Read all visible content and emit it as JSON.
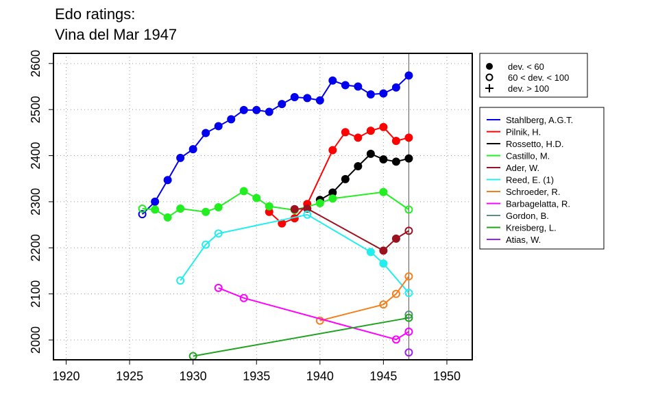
{
  "chart_data": {
    "type": "line",
    "title_lines": [
      "Edo ratings:",
      "Vina del Mar 1947"
    ],
    "xlim": [
      1919,
      1952
    ],
    "ylim": [
      1957,
      2622
    ],
    "x_ticks": [
      1920,
      1925,
      1930,
      1935,
      1940,
      1945,
      1950
    ],
    "y_ticks": [
      2000,
      2100,
      2200,
      2300,
      2400,
      2500,
      2600
    ],
    "grid": true,
    "vertical_marker_x": 1947,
    "marker_legend": [
      {
        "symbol": "filled-circle",
        "label": "dev. < 60"
      },
      {
        "symbol": "open-circle",
        "label": "60 < dev. < 100"
      },
      {
        "symbol": "plus",
        "label": "dev. > 100"
      }
    ],
    "series": [
      {
        "name": "Stahlberg, A.G.T.",
        "color": "#0000ee",
        "x": [
          1926,
          1927,
          1928,
          1929,
          1930,
          1931,
          1932,
          1933,
          1934,
          1935,
          1936,
          1937,
          1938,
          1939,
          1940,
          1941,
          1942,
          1943,
          1944,
          1945,
          1946,
          1947
        ],
        "y": [
          2273,
          2300,
          2347,
          2395,
          2414,
          2449,
          2464,
          2479,
          2499,
          2499,
          2495,
          2512,
          2527,
          2525,
          2520,
          2563,
          2553,
          2550,
          2533,
          2535,
          2548,
          2574
        ],
        "marker": [
          "open",
          "filled",
          "filled",
          "filled",
          "filled",
          "filled",
          "filled",
          "filled",
          "filled",
          "filled",
          "filled",
          "filled",
          "filled",
          "filled",
          "filled",
          "filled",
          "filled",
          "filled",
          "filled",
          "filled",
          "filled",
          "filled"
        ]
      },
      {
        "name": "Pilnik, H.",
        "color": "#ff0000",
        "x": [
          1936,
          1937,
          1938,
          1939,
          1941,
          1942,
          1943,
          1944,
          1945,
          1946,
          1947
        ],
        "y": [
          2278,
          2253,
          2264,
          2295,
          2412,
          2451,
          2439,
          2454,
          2462,
          2432,
          2439
        ],
        "marker": [
          "filled",
          "filled",
          "filled",
          "filled",
          "filled",
          "filled",
          "filled",
          "filled",
          "filled",
          "filled",
          "filled"
        ]
      },
      {
        "name": "Rossetto, H.D.",
        "color": "#000000",
        "x": [
          1940,
          1941,
          1942,
          1943,
          1944,
          1945,
          1946,
          1947
        ],
        "y": [
          2304,
          2320,
          2349,
          2377,
          2404,
          2392,
          2387,
          2394
        ],
        "marker": [
          "filled",
          "filled",
          "filled",
          "filled",
          "filled",
          "filled",
          "filled",
          "filled"
        ]
      },
      {
        "name": "Castillo, M.",
        "color": "#22ee22",
        "x": [
          1926,
          1927,
          1928,
          1929,
          1931,
          1932,
          1934,
          1935,
          1936,
          1938,
          1940,
          1941,
          1945,
          1947
        ],
        "y": [
          2285,
          2283,
          2266,
          2285,
          2278,
          2288,
          2323,
          2308,
          2290,
          2282,
          2297,
          2307,
          2321,
          2283
        ],
        "marker": [
          "open",
          "filled",
          "filled",
          "filled",
          "filled",
          "filled",
          "filled",
          "filled",
          "filled",
          "filled",
          "filled",
          "filled",
          "filled",
          "open"
        ]
      },
      {
        "name": "Ader, W.",
        "color": "#9b111e",
        "x": [
          1938,
          1939,
          1945,
          1946,
          1947
        ],
        "y": [
          2284,
          2285,
          2194,
          2220,
          2237
        ],
        "marker": [
          "filled",
          "filled",
          "filled",
          "filled",
          "open"
        ]
      },
      {
        "name": "Reed, E. (1)",
        "color": "#22eeee",
        "x": [
          1929,
          1931,
          1932,
          1939,
          1944,
          1945,
          1947
        ],
        "y": [
          2129,
          2207,
          2231,
          2272,
          2191,
          2166,
          2102
        ],
        "marker": [
          "open",
          "open",
          "open",
          "open",
          "filled",
          "filled",
          "open"
        ]
      },
      {
        "name": "Schroeder, R.",
        "color": "#f47f1c",
        "x": [
          1940,
          1945,
          1946,
          1947
        ],
        "y": [
          2042,
          2077,
          2100,
          2138
        ],
        "marker": [
          "open",
          "open",
          "open",
          "open"
        ]
      },
      {
        "name": "Barbagelatta, R.",
        "color": "#ff00ff",
        "x": [
          1932,
          1934,
          1946,
          1947
        ],
        "y": [
          2113,
          2091,
          2001,
          2018
        ],
        "marker": [
          "open",
          "open",
          "open",
          "open"
        ]
      },
      {
        "name": "Gordon, B.",
        "color": "#5f8f7f",
        "x": [
          1947
        ],
        "y": [
          2055
        ],
        "marker": [
          "open"
        ]
      },
      {
        "name": "Kreisberg, L.",
        "color": "#1fa31f",
        "x": [
          1930,
          1947
        ],
        "y": [
          1965,
          2048
        ],
        "marker": [
          "open",
          "open"
        ]
      },
      {
        "name": "Atias, W.",
        "color": "#a020f0",
        "x": [
          1947
        ],
        "y": [
          1973
        ],
        "marker": [
          "open"
        ]
      }
    ]
  }
}
